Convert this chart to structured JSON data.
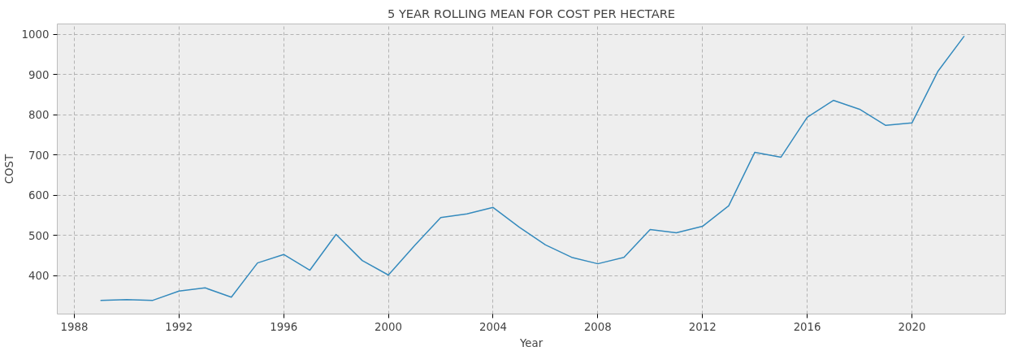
{
  "chart_data": {
    "type": "line",
    "title": "5 YEAR ROLLING MEAN FOR COST PER HECTARE",
    "xlabel": "Year",
    "ylabel": "COST",
    "x": [
      1989,
      1990,
      1991,
      1992,
      1993,
      1994,
      1995,
      1996,
      1997,
      1998,
      1999,
      2000,
      2001,
      2002,
      2003,
      2004,
      2005,
      2006,
      2007,
      2008,
      2009,
      2010,
      2011,
      2012,
      2013,
      2014,
      2015,
      2016,
      2017,
      2018,
      2019,
      2020,
      2021,
      2022
    ],
    "series": [
      {
        "color": "#348abd",
        "values": [
          339,
          341,
          339,
          362,
          370,
          347,
          432,
          453,
          414,
          503,
          438,
          402,
          475,
          545,
          554,
          570,
          521,
          477,
          446,
          430,
          446,
          515,
          507,
          523,
          574,
          707,
          695,
          794,
          836,
          814,
          774,
          780,
          909,
          996
        ]
      }
    ],
    "xlim": [
      1987.35,
      2023.57
    ],
    "ylim": [
      305,
      1026
    ],
    "xticks": [
      1988,
      1992,
      1996,
      2000,
      2004,
      2008,
      2012,
      2016,
      2020
    ],
    "yticks": [
      400,
      500,
      600,
      700,
      800,
      900,
      1000
    ],
    "grid": true,
    "line_style": "solid",
    "marker": "none"
  }
}
